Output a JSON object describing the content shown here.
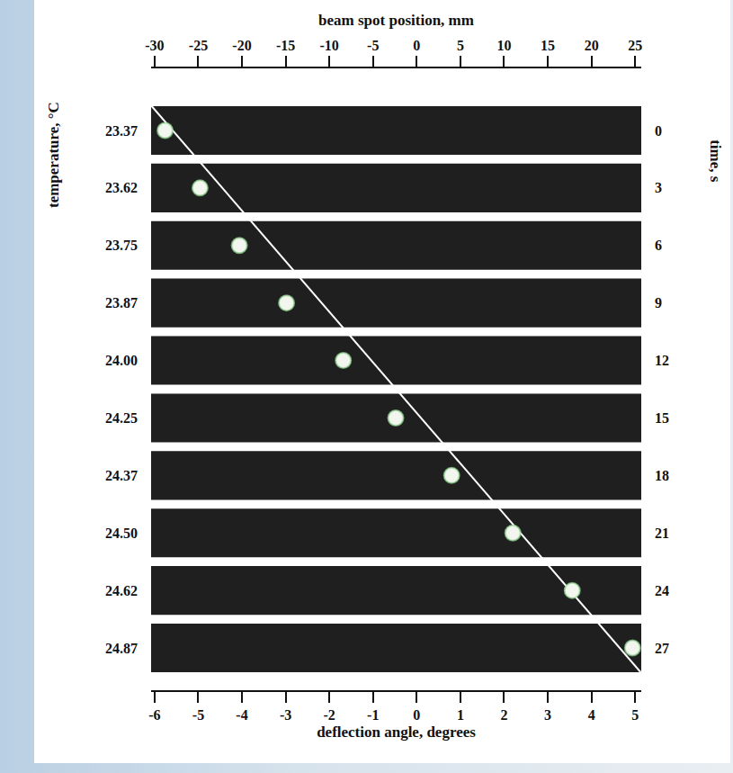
{
  "chart_data": {
    "type": "scatter",
    "x_title": "beam spot position, mm",
    "x2_title": "deflection angle, degrees",
    "y_title": "temperature, °C",
    "y2_title": "time, s",
    "xlim": [
      -30.4,
      25.7
    ],
    "xticks": [
      -30,
      -25,
      -20,
      -15,
      -10,
      -5,
      0,
      5,
      10,
      15,
      20,
      25
    ],
    "x2lim": [
      -6.08,
      5.14
    ],
    "x2ticks": [
      -6,
      -5,
      -4,
      -3,
      -2,
      -1,
      0,
      1,
      2,
      3,
      4,
      5
    ],
    "ylim": [
      28.5,
      -1.5
    ],
    "time": [
      0,
      3,
      6,
      9,
      12,
      15,
      18,
      21,
      24,
      27
    ],
    "temperature": [
      23.37,
      23.62,
      23.75,
      23.87,
      {
        "value": 24.0,
        "label": "24.00"
      },
      24.25,
      24.37,
      {
        "value": 24.5,
        "label": "24.50"
      },
      24.62,
      24.87
    ],
    "x": [
      -28.8,
      -24.8,
      -20.3,
      -14.9,
      -8.4,
      -2.4,
      4.0,
      11.0,
      17.8,
      24.7
    ],
    "color": "#f2f6ee",
    "marker": "circle",
    "panel_color": "#1e1f1e",
    "fit_line": {
      "x": [
        -30.4,
        25.7
      ],
      "time": [
        -1.3,
        28.3
      ],
      "color": "#ffffff"
    }
  }
}
